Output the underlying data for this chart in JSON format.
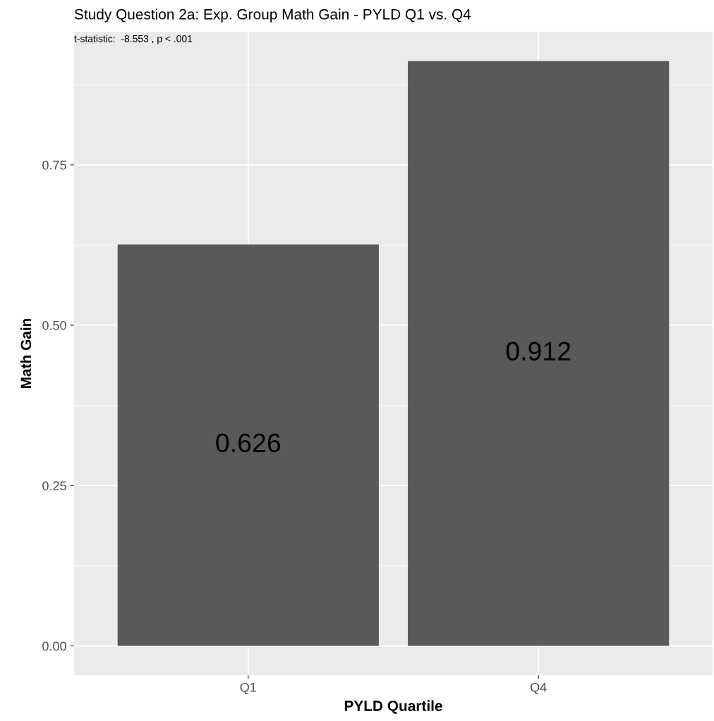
{
  "chart_data": {
    "type": "bar",
    "title": "Study Question 2a: Exp. Group Math Gain - PYLD Q1 vs. Q4",
    "annotations": [
      "t-statistic:  -8.553 , p < .001"
    ],
    "xlabel": "PYLD Quartile",
    "ylabel": "Math Gain",
    "categories": [
      "Q1",
      "Q4"
    ],
    "values": [
      0.626,
      0.912
    ],
    "color": "#595959",
    "data_labels": true,
    "ylim": [
      -0.0456,
      0.9576
    ],
    "yticks": [
      {
        "value": 0,
        "label": "0.00"
      },
      {
        "value": 0.25,
        "label": "0.25"
      },
      {
        "value": 0.5,
        "label": "0.50"
      },
      {
        "value": 0.75,
        "label": "0.75"
      }
    ],
    "grid": true,
    "legend": false
  }
}
